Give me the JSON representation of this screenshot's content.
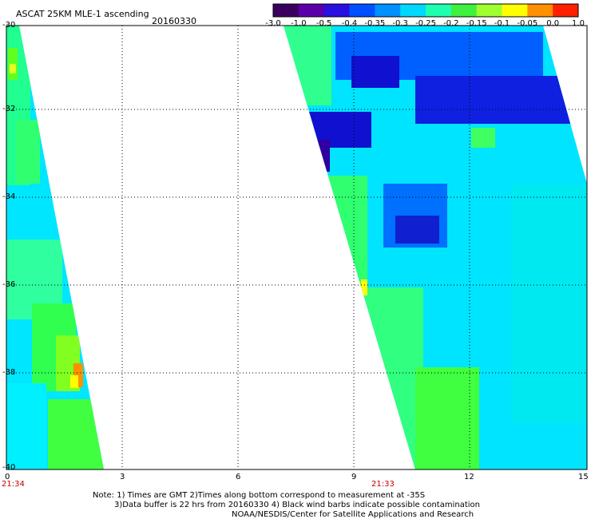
{
  "header": {
    "title": "ASCAT 25KM MLE-1 ascending",
    "date": "20160330"
  },
  "colorbar": {
    "labels": [
      "-3.0",
      "-1.0",
      "-0.5",
      "-0.4",
      "-0.35",
      "-0.3",
      "-0.25",
      "-0.2",
      "-0.15",
      "-0.1",
      "-0.05",
      "0.0",
      "1.0"
    ],
    "colors": [
      "#000000",
      "#3a0060",
      "#5a00a8",
      "#2a10e0",
      "#0050ff",
      "#0090ff",
      "#00d8ff",
      "#20ffb0",
      "#40f040",
      "#a0ff30",
      "#ffff00",
      "#ff9000",
      "#ff2000"
    ]
  },
  "axes": {
    "y_ticks": [
      "-30",
      "-32",
      "-34",
      "-36",
      "-38",
      "-40"
    ],
    "x_ticks": [
      "0",
      "3",
      "6",
      "9",
      "12",
      "15"
    ],
    "xlim": [
      0,
      15
    ],
    "ylim": [
      -40,
      -30
    ]
  },
  "times": [
    "21:34",
    "21:33"
  ],
  "notes": [
    "Note: 1) Times are GMT 2)Times along bottom correspond to measurement at -35S",
    "3)Data buffer is 22 hrs from 20160330 4) Black wind barbs indicate possible contamination",
    "NOAA/NESDIS/Center for Satellite Applications and Research"
  ]
}
